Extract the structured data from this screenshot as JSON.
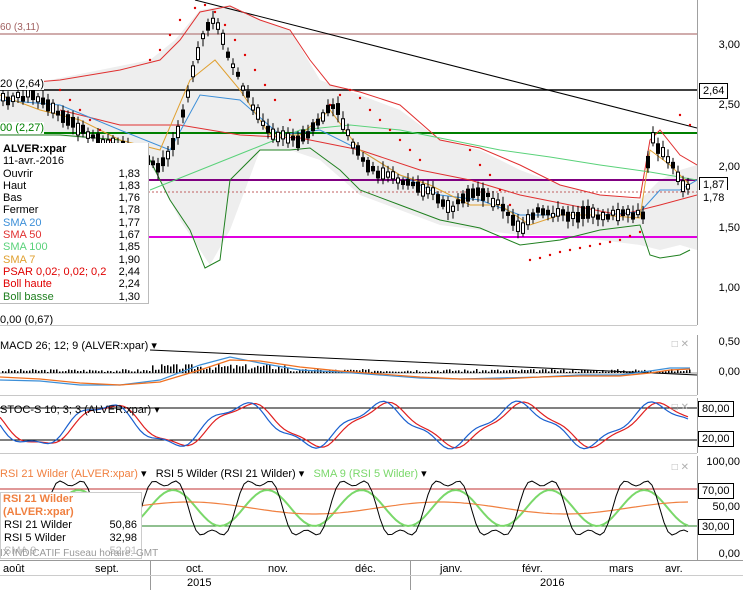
{
  "price_panel": {
    "top_labels": {
      "l1": "60 (3,11)",
      "l2": "20 (2,64)",
      "l3": "00 (2,27)",
      "l4": "0,00 (0,67)"
    },
    "y_ticks": [
      "3,00",
      "2,50",
      "2,00",
      "1,50",
      "1,00"
    ],
    "level_boxes": {
      "a": "2,64",
      "b": "1,87",
      "c": "1,78"
    },
    "legend": {
      "title": "ALVER:xpar",
      "date": "11-avr.-2016",
      "rows": [
        {
          "label": "Ouvrir",
          "value": "1,83",
          "color": "#000000"
        },
        {
          "label": "Haut",
          "value": "1,83",
          "color": "#000000"
        },
        {
          "label": "Bas",
          "value": "1,76",
          "color": "#000000"
        },
        {
          "label": "Fermer",
          "value": "1,78",
          "color": "#000000"
        },
        {
          "label": "SMA 20",
          "value": "1,77",
          "color": "#3c8fd8"
        },
        {
          "label": "SMA 50",
          "value": "1,67",
          "color": "#e03030"
        },
        {
          "label": "SMA 100",
          "value": "1,85",
          "color": "#5ad27a"
        },
        {
          "label": "SMA 7",
          "value": "1,90",
          "color": "#e0a030"
        },
        {
          "label": "PSAR 0,02; 0,02; 0,2",
          "value": "2,44",
          "color": "#e00000"
        },
        {
          "label": "Boll haute",
          "value": "2,24",
          "color": "#e00000"
        },
        {
          "label": "Boll basse",
          "value": "1,30",
          "color": "#208020"
        }
      ]
    }
  },
  "macd_panel": {
    "title": "MACD 26; 12; 9 (ALVER:xpar)",
    "y_ticks": [
      "0,50",
      "0,00"
    ]
  },
  "stoch_panel": {
    "title": "STOC-S 10; 3; 3 (ALVER:xpar)",
    "y_ticks": [
      "80,00",
      "20,00"
    ]
  },
  "rsi_panel": {
    "title_a": "RSI 21 Wilder (ALVER:xpar)",
    "title_b": "RSI 5 Wilder (RSI 21 Wilder)",
    "title_c": "SMA 9 (RSI 5 Wilder)",
    "y_ticks": [
      "100,00",
      "70,00",
      "50,00",
      "30,00",
      "0,00"
    ],
    "legend_title": "RSI 21 Wilder (ALVER:xpar)",
    "legend_rows": [
      {
        "label": "RSI 21 Wilder",
        "value": "50,86"
      },
      {
        "label": "RSI 5 Wilder",
        "value": "32,98"
      },
      {
        "label": "SMA 9",
        "value": "52,91"
      }
    ],
    "footer_note": "IX INDICATIF   Fuseau horaire: GMT"
  },
  "x_axis": {
    "months": [
      "août",
      "sept.",
      "oct.",
      "nov.",
      "déc.",
      "janv.",
      "févr.",
      "mars",
      "avr."
    ],
    "years": [
      "2015",
      "2016"
    ]
  },
  "colors": {
    "candle": "#000000",
    "sma20": "#3c8fd8",
    "sma50": "#e03030",
    "sma100": "#5ad27a",
    "sma7": "#e0a030",
    "psar": "#e00000",
    "boll_up": "#e00000",
    "boll_low": "#208020",
    "macd": "#3c8fd8",
    "signal": "#f07020",
    "stoch_k": "#1a5fcf",
    "stoch_d": "#e02020",
    "rsi21": "#f08040",
    "rsi5": "#000000",
    "rsi_sma": "#7ad86a",
    "level_green": "#008000",
    "level_magenta": "#e000e0",
    "level_purple": "#800080"
  }
}
